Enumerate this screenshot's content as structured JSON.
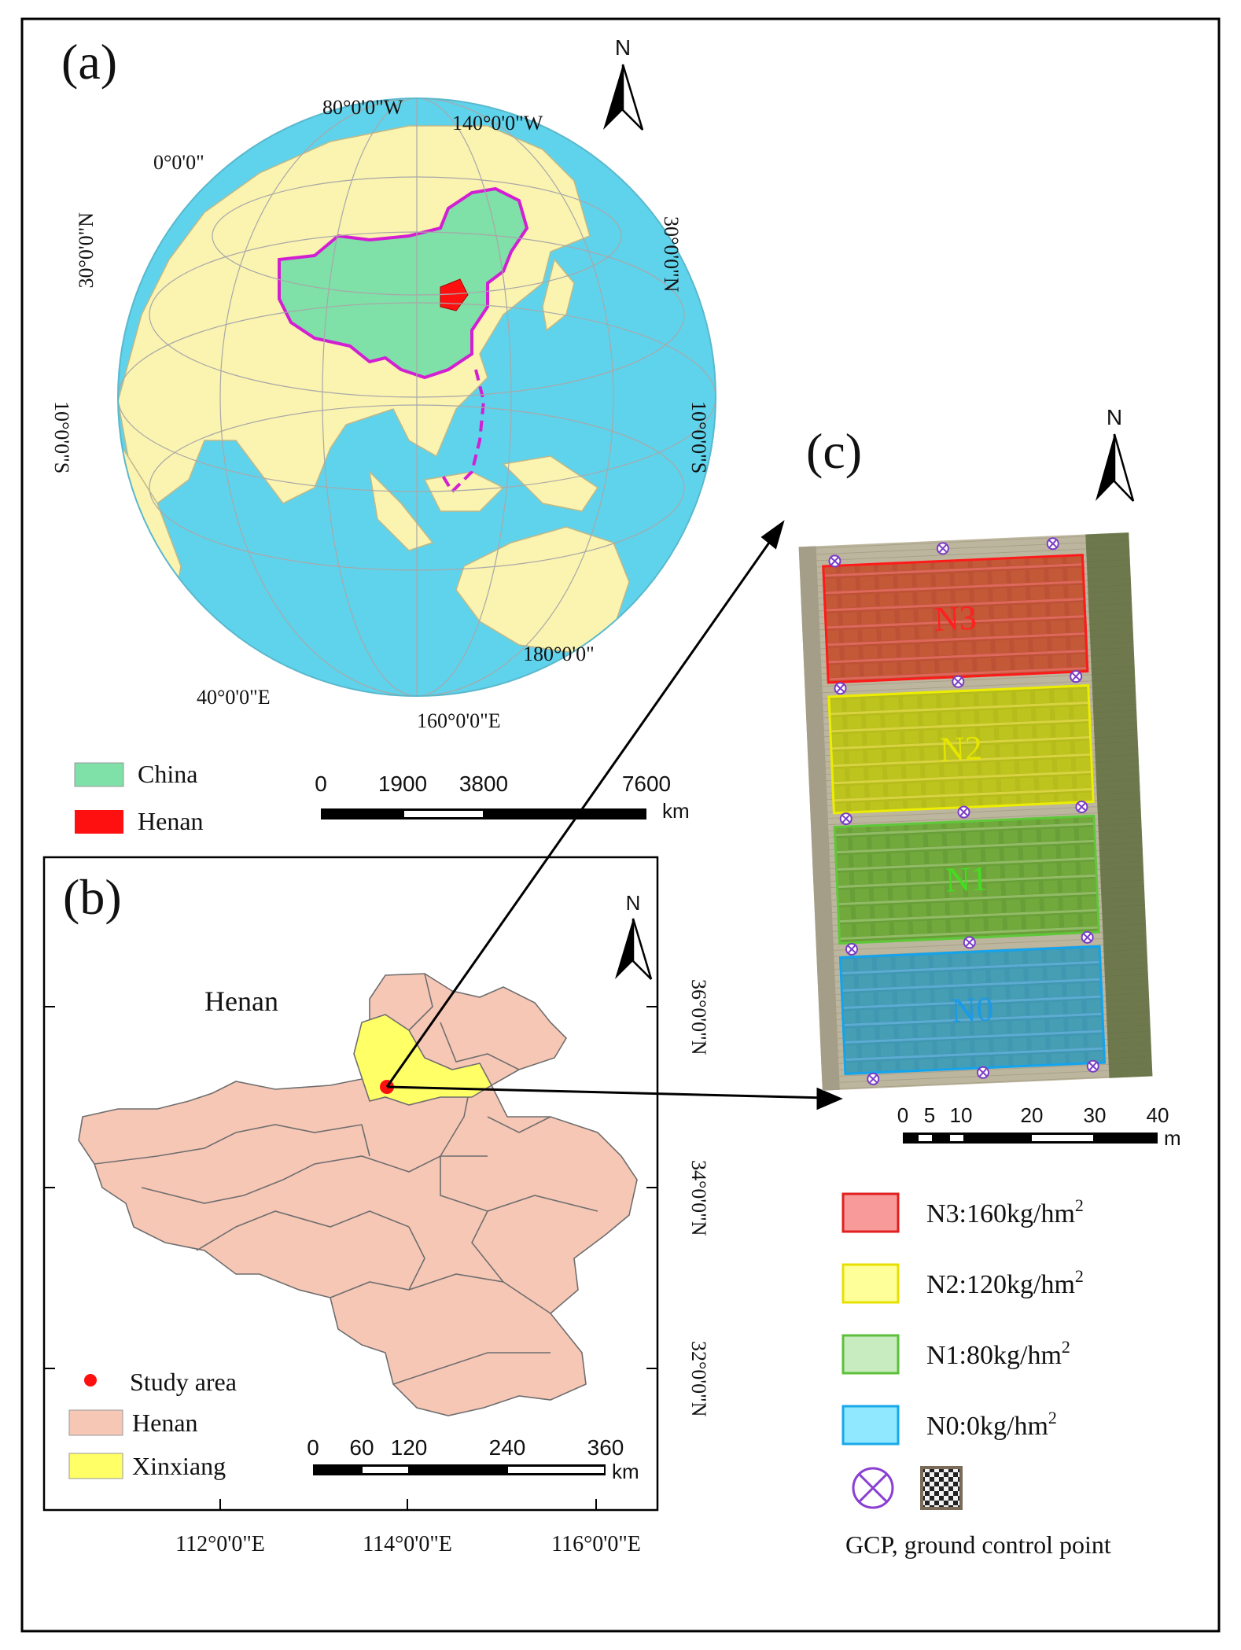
{
  "panel_a": {
    "label": "(a)",
    "north": "N",
    "graticule_labels": {
      "w80": "80°0'0\"W",
      "w140": "140°0'0\"W",
      "zero": "0°0'0\"",
      "n30_left": "30°0'0\"N",
      "n30_right": "30°0'0\"N",
      "s10_left": "10°0'0\"S",
      "s10_right": "10°0'0\"S",
      "e180": "180°0'0\"",
      "e40": "40°0'0\"E",
      "e160": "160°0'0\"E"
    },
    "legend": [
      {
        "label": "China",
        "color": "#7fe0a8"
      },
      {
        "label": "Henan",
        "color": "#ff1010"
      }
    ],
    "scale": {
      "ticks": [
        "0",
        "1900",
        "3800",
        "7600"
      ],
      "unit": "km"
    },
    "colors": {
      "ocean": "#5fd3ec",
      "land": "#fbf3b0",
      "china_border": "#d21fd2"
    }
  },
  "panel_b": {
    "label": "(b)",
    "north": "N",
    "region_label": "Henan",
    "lat_labels": [
      "36°0'0\"N",
      "34°0'0\"N",
      "32°0'0\"N"
    ],
    "lon_labels": [
      "112°0'0\"E",
      "114°0'0\"E",
      "116°0'0\"E"
    ],
    "legend": [
      {
        "label": "Study area",
        "symbol": "point",
        "color": "#ff1010"
      },
      {
        "label": "Henan",
        "symbol": "patch",
        "color": "#f7c7b6"
      },
      {
        "label": "Xinxiang",
        "symbol": "patch",
        "color": "#ffff66"
      }
    ],
    "scale": {
      "ticks": [
        "0",
        "60",
        "120",
        "240",
        "360"
      ],
      "unit": "km"
    }
  },
  "panel_c": {
    "label": "(c)",
    "north": "N",
    "plots": [
      {
        "name": "N3",
        "color": "#ff3030"
      },
      {
        "name": "N2",
        "color": "#f2f200"
      },
      {
        "name": "N1",
        "color": "#66cc33"
      },
      {
        "name": "N0",
        "color": "#22aaff"
      }
    ],
    "scale": {
      "ticks": [
        "0",
        "5",
        "10",
        "20",
        "30",
        "40"
      ],
      "unit": "m"
    },
    "legend": [
      {
        "text": "N3:160kg/hm",
        "sup": "2",
        "fill": "#f89a9a",
        "stroke": "#e02020"
      },
      {
        "text": "N2:120kg/hm",
        "sup": "2",
        "fill": "#ffff99",
        "stroke": "#e6e000"
      },
      {
        "text": "N1:80kg/hm",
        "sup": "2",
        "fill": "#c8ecc0",
        "stroke": "#5cc03a"
      },
      {
        "text": "N0:0kg/hm",
        "sup": "2",
        "fill": "#8fe8ff",
        "stroke": "#18a8e8"
      }
    ],
    "gcp_caption": "GCP, ground control point"
  }
}
